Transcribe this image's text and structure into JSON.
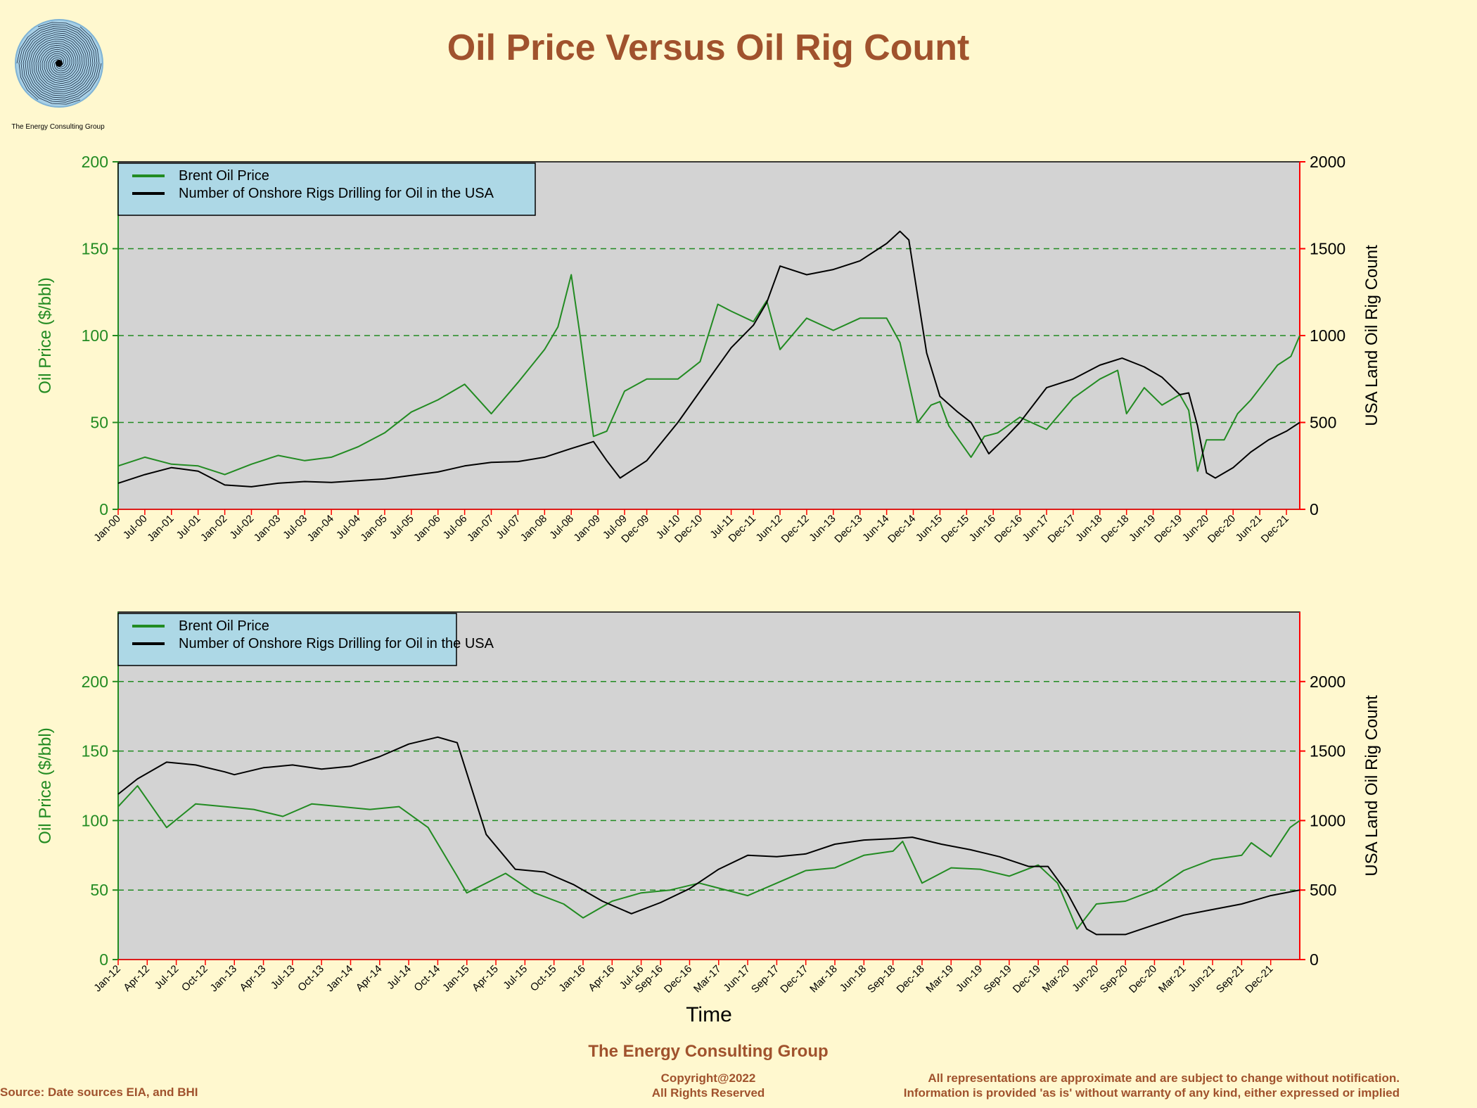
{
  "title": "Oil Price Versus Oil Rig Count",
  "logo_caption": "The Energy Consulting Group",
  "footer": {
    "organization": "The Energy Consulting Group",
    "copyright_line1": "Copyright@2022",
    "copyright_line2": "All Rights Reserved",
    "source": "Source: Date sources EIA, and BHI",
    "disclaimer_line1": "All representations are approximate and are subject to change without notification.",
    "disclaimer_line2": "Information is provided 'as is' without warranty of any kind, either expressed or implied"
  },
  "colors": {
    "background": "#fff8cf",
    "plot_area": "#d3d3d3",
    "legend_box": "#add8e6",
    "oil_price": "#228b22",
    "rig_count": "#000000",
    "right_axis": "#ff0000",
    "title": "#a0522d",
    "gridline": "#228b22"
  },
  "chart_data": [
    {
      "type": "line",
      "xlabel": "",
      "ylabel": "Oil Price ($/bbl)",
      "y2label": "USA Land Oil Rig Count",
      "ylim": [
        0,
        200
      ],
      "y2lim": [
        0,
        2000
      ],
      "xlim": [
        "2000-01",
        "2022-03"
      ],
      "yticks": [
        0,
        50,
        100,
        150,
        200
      ],
      "y2ticks": [
        0,
        500,
        1000,
        1500,
        2000
      ],
      "grid": "horizontal dashed",
      "legend": "top-left",
      "x_ticks": [
        "Jan-00",
        "Jul-00",
        "Jan-01",
        "Jul-01",
        "Jan-02",
        "Jul-02",
        "Jan-03",
        "Jul-03",
        "Jan-04",
        "Jul-04",
        "Jan-05",
        "Jul-05",
        "Jan-06",
        "Jul-06",
        "Jan-07",
        "Jul-07",
        "Jan-08",
        "Jul-08",
        "Jan-09",
        "Jul-09",
        "Dec-09",
        "Jul-10",
        "Dec-10",
        "Jul-11",
        "Dec-11",
        "Jun-12",
        "Dec-12",
        "Jun-13",
        "Dec-13",
        "Jun-14",
        "Dec-14",
        "Jun-15",
        "Dec-15",
        "Jun-16",
        "Dec-16",
        "Jun-17",
        "Dec-17",
        "Jun-18",
        "Dec-18",
        "Jun-19",
        "Dec-19",
        "Jun-20",
        "Dec-20",
        "Jun-21",
        "Dec-21"
      ],
      "series": [
        {
          "name": "Brent Oil Price",
          "axis": "left",
          "x": [
            "2000-01",
            "2000-07",
            "2001-01",
            "2001-07",
            "2002-01",
            "2002-07",
            "2003-01",
            "2003-07",
            "2004-01",
            "2004-07",
            "2005-01",
            "2005-07",
            "2006-01",
            "2006-07",
            "2007-01",
            "2007-07",
            "2008-01",
            "2008-04",
            "2008-07",
            "2008-09",
            "2008-12",
            "2009-03",
            "2009-07",
            "2009-12",
            "2010-07",
            "2010-12",
            "2011-04",
            "2011-07",
            "2011-12",
            "2012-03",
            "2012-06",
            "2012-12",
            "2013-06",
            "2013-12",
            "2014-06",
            "2014-09",
            "2015-01",
            "2015-04",
            "2015-06",
            "2015-08",
            "2016-01",
            "2016-04",
            "2016-07",
            "2016-12",
            "2017-06",
            "2017-12",
            "2018-06",
            "2018-10",
            "2018-12",
            "2019-04",
            "2019-08",
            "2019-12",
            "2020-02",
            "2020-04",
            "2020-06",
            "2020-10",
            "2021-01",
            "2021-04",
            "2021-07",
            "2021-10",
            "2022-01",
            "2022-03"
          ],
          "y": [
            25,
            30,
            26,
            25,
            20,
            26,
            31,
            28,
            30,
            36,
            44,
            56,
            63,
            72,
            55,
            73,
            92,
            105,
            135,
            100,
            42,
            45,
            68,
            75,
            75,
            85,
            118,
            114,
            108,
            120,
            92,
            110,
            103,
            110,
            110,
            96,
            50,
            60,
            62,
            48,
            30,
            42,
            44,
            53,
            46,
            64,
            75,
            80,
            55,
            70,
            60,
            66,
            57,
            22,
            40,
            40,
            55,
            63,
            73,
            83,
            88,
            100
          ]
        },
        {
          "name": "Number of Onshore Rigs Drilling for Oil in the USA",
          "axis": "right",
          "x": [
            "2000-01",
            "2000-07",
            "2001-01",
            "2001-07",
            "2002-01",
            "2002-07",
            "2003-01",
            "2003-07",
            "2004-01",
            "2004-07",
            "2005-01",
            "2005-07",
            "2006-01",
            "2006-07",
            "2007-01",
            "2007-07",
            "2008-01",
            "2008-07",
            "2008-12",
            "2009-03",
            "2009-06",
            "2009-12",
            "2010-07",
            "2010-12",
            "2011-07",
            "2011-12",
            "2012-03",
            "2012-06",
            "2012-12",
            "2013-06",
            "2013-12",
            "2014-06",
            "2014-09",
            "2014-11",
            "2015-03",
            "2015-06",
            "2015-10",
            "2016-01",
            "2016-05",
            "2016-09",
            "2016-12",
            "2017-06",
            "2017-12",
            "2018-06",
            "2018-11",
            "2019-04",
            "2019-08",
            "2019-12",
            "2020-02",
            "2020-04",
            "2020-06",
            "2020-08",
            "2020-12",
            "2021-04",
            "2021-08",
            "2021-12",
            "2022-03"
          ],
          "y": [
            150,
            200,
            240,
            220,
            140,
            130,
            150,
            160,
            155,
            165,
            175,
            195,
            215,
            250,
            270,
            275,
            300,
            350,
            390,
            280,
            180,
            280,
            500,
            680,
            930,
            1060,
            1190,
            1400,
            1350,
            1380,
            1430,
            1530,
            1600,
            1550,
            900,
            650,
            560,
            500,
            320,
            420,
            500,
            700,
            750,
            830,
            870,
            820,
            760,
            660,
            670,
            480,
            210,
            180,
            240,
            330,
            400,
            450,
            500
          ]
        }
      ]
    },
    {
      "type": "line",
      "xlabel": "Time",
      "ylabel": "Oil Price ($/bbl)",
      "y2label": "USA Land Oil Rig Count",
      "ylim": [
        0,
        250
      ],
      "y2lim": [
        0,
        2500
      ],
      "xlim": [
        "2012-01",
        "2022-03"
      ],
      "yticks": [
        0,
        50,
        100,
        150,
        200
      ],
      "y2ticks": [
        0,
        500,
        1000,
        1500,
        2000
      ],
      "grid": "horizontal dashed",
      "legend": "top-left",
      "x_ticks": [
        "Jan-12",
        "Apr-12",
        "Jul-12",
        "Oct-12",
        "Jan-13",
        "Apr-13",
        "Jul-13",
        "Oct-13",
        "Jan-14",
        "Apr-14",
        "Jul-14",
        "Oct-14",
        "Jan-15",
        "Apr-15",
        "Jul-15",
        "Oct-15",
        "Jan-16",
        "Apr-16",
        "Jul-16",
        "Sep-16",
        "Dec-16",
        "Mar-17",
        "Jun-17",
        "Sep-17",
        "Dec-17",
        "Mar-18",
        "Jun-18",
        "Sep-18",
        "Dec-18",
        "Mar-19",
        "Jun-19",
        "Sep-19",
        "Dec-19",
        "Mar-20",
        "Jun-20",
        "Sep-20",
        "Dec-20",
        "Mar-21",
        "Jun-21",
        "Sep-21",
        "Dec-21"
      ],
      "series": [
        {
          "name": "Brent Oil Price",
          "axis": "left",
          "x": [
            "2012-01",
            "2012-03",
            "2012-06",
            "2012-09",
            "2012-12",
            "2013-03",
            "2013-06",
            "2013-09",
            "2013-12",
            "2014-03",
            "2014-06",
            "2014-09",
            "2014-12",
            "2015-01",
            "2015-05",
            "2015-08",
            "2015-11",
            "2016-01",
            "2016-04",
            "2016-07",
            "2016-10",
            "2017-01",
            "2017-06",
            "2017-09",
            "2017-12",
            "2018-03",
            "2018-06",
            "2018-09",
            "2018-10",
            "2018-12",
            "2019-03",
            "2019-06",
            "2019-09",
            "2019-12",
            "2020-02",
            "2020-04",
            "2020-06",
            "2020-09",
            "2020-12",
            "2021-03",
            "2021-06",
            "2021-09",
            "2021-10",
            "2021-12",
            "2022-02",
            "2022-03"
          ],
          "y": [
            110,
            125,
            95,
            112,
            110,
            108,
            103,
            112,
            110,
            108,
            110,
            95,
            60,
            48,
            62,
            48,
            40,
            30,
            42,
            48,
            50,
            55,
            46,
            55,
            64,
            66,
            75,
            78,
            85,
            55,
            66,
            65,
            60,
            68,
            55,
            22,
            40,
            42,
            50,
            64,
            72,
            75,
            84,
            74,
            95,
            100
          ]
        },
        {
          "name": "Number of Onshore Rigs Drilling for Oil in the USA",
          "axis": "right",
          "x": [
            "2012-01",
            "2012-03",
            "2012-06",
            "2012-09",
            "2012-12",
            "2013-01",
            "2013-04",
            "2013-07",
            "2013-10",
            "2014-01",
            "2014-04",
            "2014-07",
            "2014-10",
            "2014-12",
            "2015-03",
            "2015-06",
            "2015-09",
            "2015-12",
            "2016-03",
            "2016-06",
            "2016-09",
            "2016-12",
            "2017-03",
            "2017-06",
            "2017-09",
            "2017-12",
            "2018-03",
            "2018-06",
            "2018-09",
            "2018-11",
            "2019-02",
            "2019-05",
            "2019-08",
            "2019-11",
            "2020-01",
            "2020-03",
            "2020-05",
            "2020-06",
            "2020-09",
            "2020-12",
            "2021-03",
            "2021-06",
            "2021-09",
            "2021-12",
            "2022-03"
          ],
          "y": [
            1190,
            1300,
            1420,
            1400,
            1350,
            1330,
            1380,
            1400,
            1370,
            1390,
            1460,
            1550,
            1600,
            1560,
            900,
            650,
            630,
            540,
            420,
            330,
            410,
            510,
            650,
            750,
            740,
            760,
            830,
            860,
            870,
            880,
            830,
            790,
            740,
            670,
            670,
            480,
            220,
            180,
            180,
            250,
            320,
            360,
            400,
            460,
            500
          ]
        }
      ]
    }
  ]
}
